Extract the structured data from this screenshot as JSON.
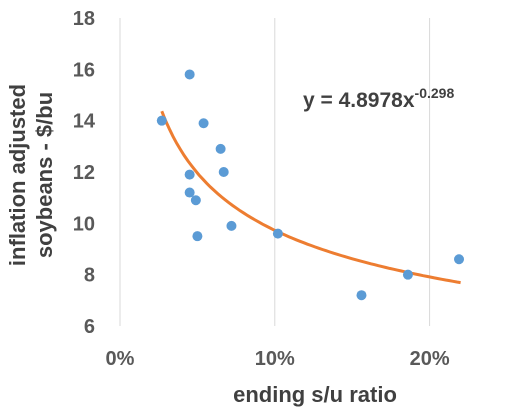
{
  "chart_data": {
    "type": "scatter",
    "title": "",
    "xlabel": "ending s/u ratio",
    "ylabel": "inflation adjusted soybeans - $/bu",
    "ylabel_lines": [
      "inflation adjusted",
      "soybeans - $/bu"
    ],
    "xlim": [
      0,
      0.25
    ],
    "ylim": [
      6,
      18
    ],
    "x_ticks": [
      0,
      0.1,
      0.2
    ],
    "x_tick_labels": [
      "0%",
      "10%",
      "20%"
    ],
    "y_ticks": [
      6,
      8,
      10,
      12,
      14,
      16,
      18
    ],
    "y_tick_labels": [
      "6",
      "8",
      "10",
      "12",
      "14",
      "16",
      "18"
    ],
    "grid": "vertical",
    "point_color": "#5b9bd5",
    "trend_color": "#ed7d31",
    "points": [
      {
        "x": 0.027,
        "y": 14.0
      },
      {
        "x": 0.045,
        "y": 15.8
      },
      {
        "x": 0.045,
        "y": 11.9
      },
      {
        "x": 0.045,
        "y": 11.2
      },
      {
        "x": 0.049,
        "y": 10.9
      },
      {
        "x": 0.05,
        "y": 9.5
      },
      {
        "x": 0.054,
        "y": 13.9
      },
      {
        "x": 0.065,
        "y": 12.9
      },
      {
        "x": 0.067,
        "y": 12.0
      },
      {
        "x": 0.072,
        "y": 9.9
      },
      {
        "x": 0.102,
        "y": 9.6
      },
      {
        "x": 0.156,
        "y": 7.2
      },
      {
        "x": 0.186,
        "y": 8.0
      },
      {
        "x": 0.219,
        "y": 8.6
      }
    ],
    "trendline": {
      "type": "power",
      "coefficient": 4.8978,
      "exponent": -0.298,
      "x_range": [
        0.027,
        0.22
      ],
      "equation_base": "y = 4.8978x",
      "equation_exponent": "-0.298"
    }
  }
}
